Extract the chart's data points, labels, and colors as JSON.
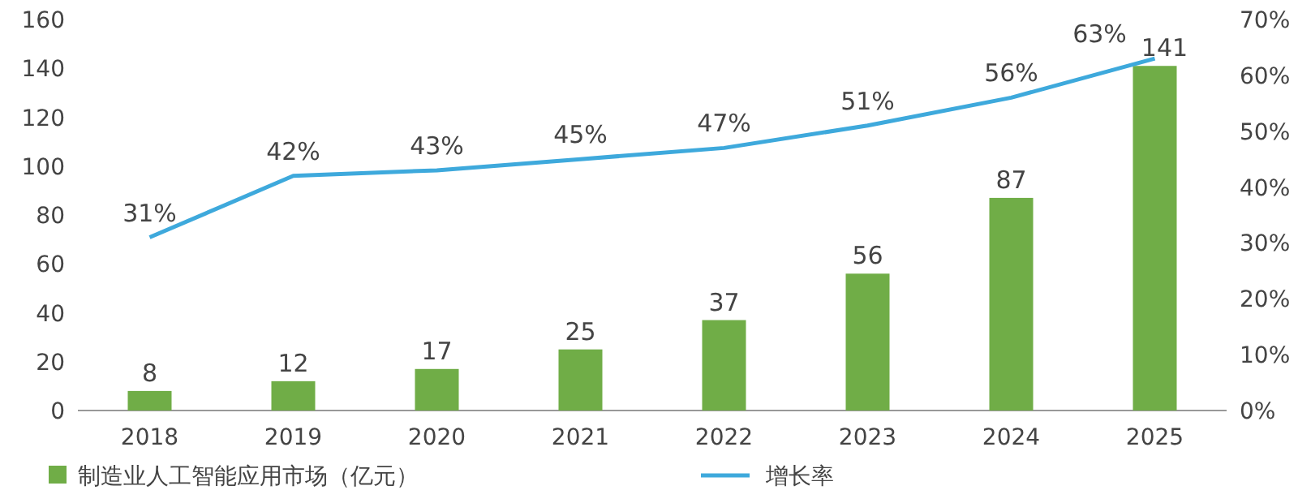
{
  "chart_data": {
    "type": "bar",
    "categories": [
      "2018",
      "2019",
      "2020",
      "2021",
      "2022",
      "2023",
      "2024",
      "2025"
    ],
    "series": [
      {
        "name": "制造业人工智能应用市场（亿元）",
        "color": "#70ad47",
        "values": [
          8,
          12,
          17,
          25,
          37,
          56,
          87,
          141
        ],
        "value_labels": [
          "8",
          "12",
          "17",
          "25",
          "37",
          "56",
          "87",
          "141"
        ]
      },
      {
        "name": "增长率",
        "type": "line",
        "axis": "y2",
        "color": "#3ea9dc",
        "values": [
          31,
          42,
          43,
          45,
          47,
          51,
          56,
          63
        ],
        "value_labels": [
          "31%",
          "42%",
          "43%",
          "45%",
          "47%",
          "51%",
          "56%",
          "63%"
        ]
      }
    ],
    "ylim": [
      0,
      160
    ],
    "yticks": [
      0,
      20,
      40,
      60,
      80,
      100,
      120,
      140,
      160
    ],
    "y2lim": [
      0,
      70
    ],
    "y2ticks": [
      {
        "value": 0,
        "label": "0%"
      },
      {
        "value": 10,
        "label": "10%"
      },
      {
        "value": 20,
        "label": "20%"
      },
      {
        "value": 30,
        "label": "30%"
      },
      {
        "value": 40,
        "label": "40%"
      },
      {
        "value": 50,
        "label": "50%"
      },
      {
        "value": 60,
        "label": "60%"
      },
      {
        "value": 70,
        "label": "70%"
      }
    ],
    "grid": false,
    "legend": "bottom",
    "marker": "none",
    "line_style": "solid"
  }
}
